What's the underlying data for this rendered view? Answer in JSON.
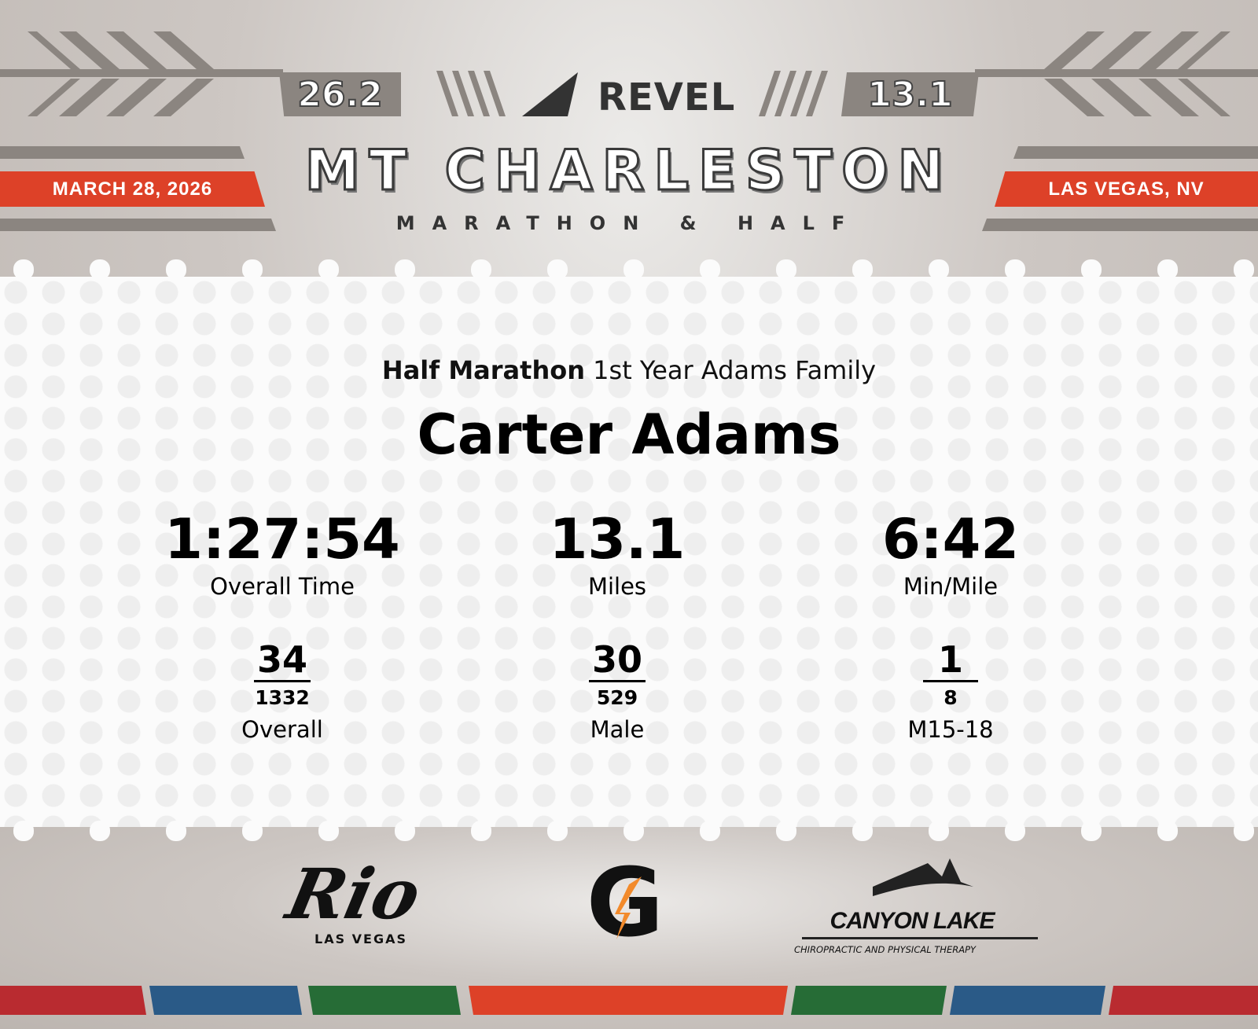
{
  "header": {
    "marathon_distance": "26.2",
    "half_distance": "13.1",
    "brand": "REVEL",
    "title": "MT CHARLESTON",
    "subtitle": "MARATHON & HALF",
    "date": "MARCH 28, 2026",
    "location": "LAS VEGAS, NV"
  },
  "result": {
    "race": "Half Marathon",
    "team": "1st Year Adams Family",
    "name": "Carter Adams",
    "stats": [
      {
        "value": "1:27:54",
        "label": "Overall Time"
      },
      {
        "value": "13.1",
        "label": "Miles"
      },
      {
        "value": "6:42",
        "label": "Min/Mile"
      }
    ],
    "ranks": [
      {
        "place": "34",
        "total": "1332",
        "label": "Overall"
      },
      {
        "place": "30",
        "total": "529",
        "label": "Male"
      },
      {
        "place": "1",
        "total": "8",
        "label": "M15-18"
      }
    ]
  },
  "sponsors": {
    "rio": "Rio",
    "rio_sub": "LAS VEGAS",
    "gatorade": "G",
    "canyon": "CANYON LAKE",
    "canyon_sub": "CHIROPRACTIC AND PHYSICAL THERAPY"
  },
  "colors": {
    "red": "#dd4128",
    "darkred": "#b92b30",
    "blue": "#2a5a87",
    "green": "#266c36",
    "gray": "#8b8580"
  }
}
